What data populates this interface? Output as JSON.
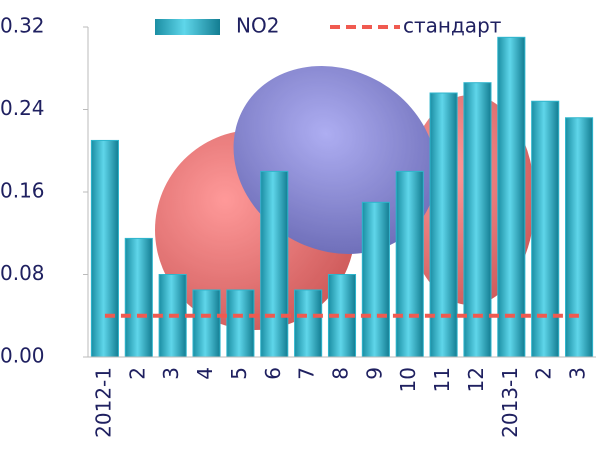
{
  "chart_data": {
    "type": "bar",
    "categories": [
      "2012-1",
      "2",
      "3",
      "4",
      "5",
      "6",
      "7",
      "8",
      "9",
      "10",
      "11",
      "12",
      "2013-1",
      "2",
      "3"
    ],
    "series": [
      {
        "name": "NO2",
        "type": "bar",
        "color": "#2fb5cc",
        "values": [
          0.21,
          0.115,
          0.08,
          0.065,
          0.065,
          0.18,
          0.065,
          0.08,
          0.15,
          0.18,
          0.256,
          0.266,
          0.31,
          0.248,
          0.232
        ]
      },
      {
        "name": "стандарт",
        "type": "line",
        "color": "#f05a50",
        "values": [
          0.04,
          0.04,
          0.04,
          0.04,
          0.04,
          0.04,
          0.04,
          0.04,
          0.04,
          0.04,
          0.04,
          0.04,
          0.04,
          0.04,
          0.04
        ]
      }
    ],
    "ylim": [
      0,
      0.32
    ],
    "yticks": [
      {
        "value": 0,
        "label": "0.00"
      },
      0.08,
      0.16,
      0.24,
      0.32
    ]
  }
}
